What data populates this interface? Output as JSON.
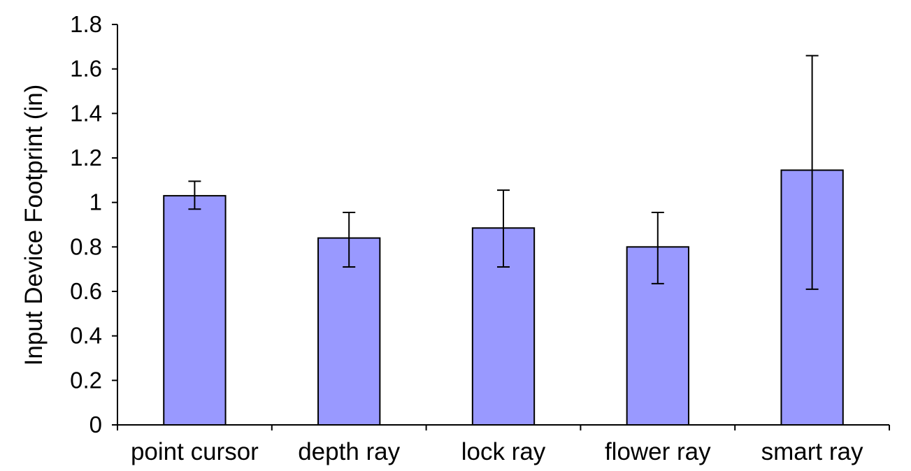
{
  "chart_data": {
    "type": "bar",
    "categories": [
      "point cursor",
      "depth ray",
      "lock ray",
      "flower ray",
      "smart ray"
    ],
    "series": [
      {
        "values": [
          1.03,
          0.84,
          0.885,
          0.8,
          1.145
        ],
        "error_low": [
          0.97,
          0.71,
          0.71,
          0.635,
          0.61
        ],
        "error_high": [
          1.095,
          0.955,
          1.055,
          0.955,
          1.66
        ],
        "color": "#9999ff"
      }
    ],
    "title": "",
    "xlabel": "",
    "ylabel": "Input Device Footprint (in)",
    "ylim": [
      0,
      1.8
    ],
    "yticks": [
      "0",
      "0.2",
      "0.4",
      "0.6",
      "0.8",
      "1",
      "1.2",
      "1.4",
      "1.6",
      "1.8"
    ],
    "grid": false,
    "legend": "none"
  }
}
